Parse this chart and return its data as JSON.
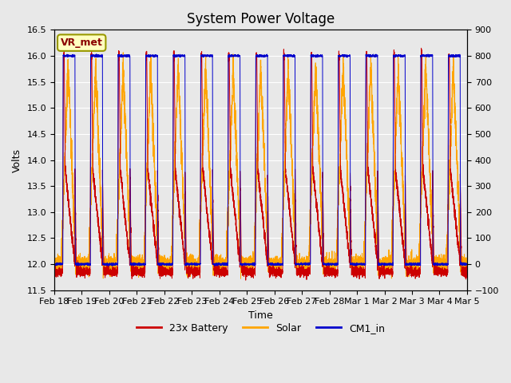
{
  "title": "System Power Voltage",
  "xlabel": "Time",
  "ylabel_left": "Volts",
  "ylabel_right": "",
  "ylim_left": [
    11.5,
    16.5
  ],
  "ylim_right": [
    -100,
    900
  ],
  "yticks_left": [
    11.5,
    12.0,
    12.5,
    13.0,
    13.5,
    14.0,
    14.5,
    15.0,
    15.5,
    16.0,
    16.5
  ],
  "yticks_right": [
    -100,
    0,
    100,
    200,
    300,
    400,
    500,
    600,
    700,
    800,
    900
  ],
  "xtick_labels": [
    "Feb 18",
    "Feb 19",
    "Feb 20",
    "Feb 21",
    "Feb 22",
    "Feb 23",
    "Feb 24",
    "Feb 25",
    "Feb 26",
    "Feb 27",
    "Feb 28",
    "Mar 1",
    "Mar 2",
    "Mar 3",
    "Mar 4",
    "Mar 5"
  ],
  "annotation_text": "VR_met",
  "annotation_color": "#8B0000",
  "annotation_bg": "#FFFFC0",
  "background_color": "#E8E8E8",
  "fig_background": "#E8E8E8",
  "line_battery_color": "#CC0000",
  "line_solar_color": "#FFA500",
  "line_cm1_color": "#0000CC",
  "legend_labels": [
    "23x Battery",
    "Solar",
    "CM1_in"
  ],
  "title_fontsize": 12,
  "axis_fontsize": 9,
  "tick_fontsize": 8
}
